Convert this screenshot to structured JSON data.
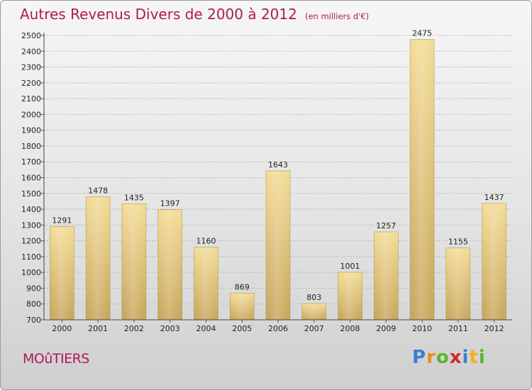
{
  "title": {
    "main": "Autres Revenus Divers de 2000 à 2012",
    "unit": "(en milliers d'€)"
  },
  "town": "MOûTIERS",
  "logo": {
    "text": "Proxiti",
    "letters": [
      {
        "ch": "P",
        "color": "#3b7fd0"
      },
      {
        "ch": "r",
        "color": "#f08a1c"
      },
      {
        "ch": "o",
        "color": "#5bb531"
      },
      {
        "ch": "x",
        "color": "#d6262c"
      },
      {
        "ch": "i",
        "color": "#3b7fd0"
      },
      {
        "ch": "t",
        "color": "#f0b21c"
      },
      {
        "ch": "i",
        "color": "#5bb531"
      }
    ]
  },
  "chart_data": {
    "type": "bar",
    "categories": [
      "2000",
      "2001",
      "2002",
      "2003",
      "2004",
      "2005",
      "2006",
      "2007",
      "2008",
      "2009",
      "2010",
      "2011",
      "2012"
    ],
    "values": [
      1291,
      1478,
      1435,
      1397,
      1160,
      869,
      1643,
      803,
      1001,
      1257,
      2475,
      1155,
      1437
    ],
    "ylim": [
      700,
      2500
    ],
    "yticks": [
      700,
      800,
      900,
      1000,
      1100,
      1200,
      1300,
      1400,
      1500,
      1600,
      1700,
      1800,
      1900,
      2000,
      2100,
      2200,
      2300,
      2400,
      2500
    ],
    "grid": true,
    "bar_color": "#dcc071"
  }
}
